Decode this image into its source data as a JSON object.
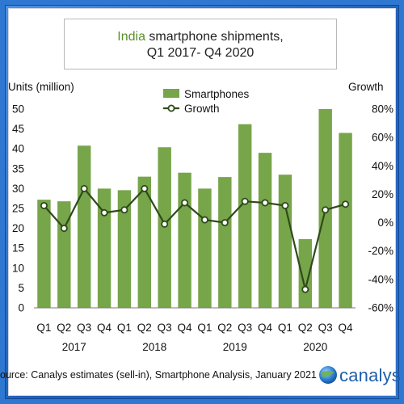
{
  "title": {
    "accent": "India",
    "rest": " smartphone shipments,",
    "line2": "Q1 2017- Q4 2020"
  },
  "source": "ource: Canalys estimates (sell-in), Smartphone Analysis, January 2021",
  "logo": {
    "text": "canalys",
    "icon": "canalys-globe-icon"
  },
  "colors": {
    "background": "#2f78d2",
    "bar": "#77a54a",
    "line": "#2f4a1b",
    "marker_fill": "#ffffff",
    "title_accent": "#5a8f2a",
    "logo": "#1d5fa8"
  },
  "chart_data": {
    "type": "bar",
    "categories": [
      "Q1",
      "Q2",
      "Q3",
      "Q4",
      "Q1",
      "Q2",
      "Q3",
      "Q4",
      "Q1",
      "Q2",
      "Q3",
      "Q4",
      "Q1",
      "Q2",
      "Q3",
      "Q4"
    ],
    "years": [
      "2017",
      "2018",
      "2019",
      "2020"
    ],
    "series": [
      {
        "name": "Smartphones",
        "type": "bar",
        "axis": "left",
        "values": [
          27.2,
          26.8,
          40.8,
          30.0,
          29.6,
          33.0,
          40.4,
          34.0,
          30.0,
          32.9,
          46.2,
          39.0,
          33.5,
          17.3,
          50.0,
          44.0
        ]
      },
      {
        "name": "Growth",
        "type": "line",
        "axis": "right",
        "values": [
          12,
          -4,
          24,
          7,
          9,
          24,
          -1,
          14,
          2,
          0,
          15,
          14,
          12,
          -47,
          9,
          13
        ]
      }
    ],
    "ylabel": "Units (million)",
    "y2label": "Growth",
    "ylim": [
      0,
      50
    ],
    "y2lim": [
      -60,
      80
    ],
    "yticks": [
      "0",
      "5",
      "10",
      "15",
      "20",
      "25",
      "30",
      "35",
      "40",
      "45",
      "50"
    ],
    "y2ticks": [
      "-60%",
      "-40%",
      "-20%",
      "0%",
      "20%",
      "40%",
      "60%",
      "80%"
    ],
    "grid": false,
    "legend": "top-center"
  }
}
